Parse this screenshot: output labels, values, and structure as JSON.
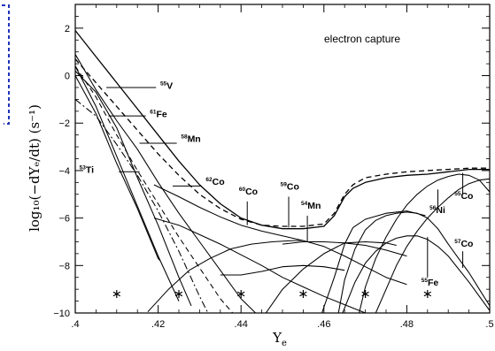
{
  "chart_data": {
    "type": "line",
    "annotation": "electron capture",
    "xlabel": "Y",
    "xlabel_sub": "e",
    "ylabel": "log₁₀(−dYₑ/dt) (s⁻¹)",
    "xlim": [
      0.4,
      0.5
    ],
    "ylim": [
      -10,
      3
    ],
    "x_ticks": [
      {
        "v": 0.4,
        "label": ".4"
      },
      {
        "v": 0.42,
        "label": ".42"
      },
      {
        "v": 0.44,
        "label": ".44"
      },
      {
        "v": 0.46,
        "label": ".46"
      },
      {
        "v": 0.48,
        "label": ".48"
      },
      {
        "v": 0.5,
        "label": ".5"
      }
    ],
    "y_ticks": [
      {
        "v": 2,
        "label": "2"
      },
      {
        "v": 0,
        "label": "0"
      },
      {
        "v": -2,
        "label": "−2"
      },
      {
        "v": -4,
        "label": "−4"
      },
      {
        "v": -6,
        "label": "−6"
      },
      {
        "v": -8,
        "label": "−8"
      },
      {
        "v": -10,
        "label": "−10"
      }
    ],
    "isotope_labels": [
      {
        "mass": "55",
        "symbol": "V",
        "x": 0.4205,
        "y": -0.55,
        "line": [
          [
            0.4075,
            -0.5
          ],
          [
            0.4195,
            -0.5
          ]
        ]
      },
      {
        "mass": "61",
        "symbol": "Fe",
        "x": 0.418,
        "y": -1.75,
        "line": [
          [
            0.408,
            -1.7
          ],
          [
            0.417,
            -1.7
          ]
        ]
      },
      {
        "mass": "58",
        "symbol": "Mn",
        "x": 0.4255,
        "y": -2.8,
        "line": [
          [
            0.4155,
            -2.85
          ],
          [
            0.4245,
            -2.85
          ]
        ]
      },
      {
        "mass": "53",
        "symbol": "Ti",
        "x": 0.401,
        "y": -4.1,
        "line": [
          [
            0.4105,
            -4.05
          ],
          [
            0.4155,
            -4.05
          ]
        ]
      },
      {
        "mass": "62",
        "symbol": "Co",
        "x": 0.4315,
        "y": -4.6,
        "line": [
          [
            0.4235,
            -4.65
          ],
          [
            0.4305,
            -4.65
          ]
        ]
      },
      {
        "mass": "60",
        "symbol": "Co",
        "x": 0.4395,
        "y": -5.0,
        "line": [
          [
            0.4415,
            -5.3
          ],
          [
            0.4415,
            -6.3
          ]
        ]
      },
      {
        "mass": "59",
        "symbol": "Co",
        "x": 0.4495,
        "y": -4.8,
        "line": [
          [
            0.4515,
            -5.1
          ],
          [
            0.4515,
            -6.4
          ]
        ]
      },
      {
        "mass": "54",
        "symbol": "Mn",
        "x": 0.4545,
        "y": -5.6,
        "line": [
          [
            0.456,
            -5.9
          ],
          [
            0.456,
            -7.0
          ]
        ]
      },
      {
        "mass": "56",
        "symbol": "Ni",
        "x": 0.4855,
        "y": -5.8,
        "line": [
          [
            0.4875,
            -5.6
          ],
          [
            0.4875,
            -4.8
          ]
        ]
      },
      {
        "mass": "55",
        "symbol": "Co",
        "x": 0.4915,
        "y": -5.2,
        "line": [
          [
            0.4935,
            -5.0
          ],
          [
            0.4935,
            -4.1
          ]
        ]
      },
      {
        "mass": "57",
        "symbol": "Co",
        "x": 0.4915,
        "y": -7.2,
        "line": [
          [
            0.4935,
            -7.4
          ],
          [
            0.4935,
            -8.1
          ]
        ]
      },
      {
        "mass": "55",
        "symbol": "Fe",
        "x": 0.4835,
        "y": -8.85,
        "line": [
          [
            0.485,
            -8.5
          ],
          [
            0.485,
            -6.8
          ]
        ]
      }
    ],
    "markers": {
      "symbol": "*",
      "y": -9.2,
      "x": [
        0.41,
        0.425,
        0.44,
        0.455,
        0.47,
        0.485
      ]
    },
    "series": [
      {
        "style": "solid",
        "x": [
          0.4,
          0.405,
          0.41,
          0.415,
          0.42,
          0.425,
          0.43,
          0.435,
          0.44,
          0.445,
          0.45,
          0.455,
          0.46,
          0.4625,
          0.465,
          0.467,
          0.47,
          0.475,
          0.48,
          0.485,
          0.49,
          0.495,
          0.5
        ],
        "y": [
          1.9,
          0.8,
          -0.3,
          -1.4,
          -2.5,
          -3.6,
          -4.6,
          -5.4,
          -6.0,
          -6.3,
          -6.45,
          -6.45,
          -6.35,
          -5.9,
          -5.1,
          -4.75,
          -4.5,
          -4.3,
          -4.2,
          -4.15,
          -4.05,
          -3.95,
          -3.95
        ]
      },
      {
        "style": "dashed",
        "x": [
          0.4,
          0.405,
          0.41,
          0.415,
          0.42,
          0.425,
          0.43,
          0.435,
          0.44,
          0.445,
          0.45,
          0.455,
          0.46,
          0.4625,
          0.465,
          0.467,
          0.47,
          0.475,
          0.48,
          0.485,
          0.49,
          0.495,
          0.5
        ],
        "y": [
          0.7,
          -0.3,
          -1.3,
          -2.3,
          -3.3,
          -4.2,
          -5.0,
          -5.6,
          -6.05,
          -6.3,
          -6.35,
          -6.35,
          -6.25,
          -5.8,
          -5.0,
          -4.6,
          -4.3,
          -4.15,
          -4.05,
          -4.0,
          -3.95,
          -3.9,
          -3.9
        ]
      },
      {
        "style": "dashed",
        "x": [
          0.4,
          0.405,
          0.41,
          0.415,
          0.42,
          0.425,
          0.43,
          0.435,
          0.438
        ],
        "y": [
          0.4,
          -0.9,
          -2.5,
          -4.0,
          -5.4,
          -6.8,
          -8.1,
          -9.4,
          -10.0
        ]
      },
      {
        "style": "dashdot",
        "x": [
          0.4,
          0.405,
          0.41,
          0.415,
          0.42,
          0.425,
          0.43,
          0.432
        ],
        "y": [
          -1.0,
          -1.7,
          -2.9,
          -4.2,
          -5.7,
          -7.4,
          -9.3,
          -10.0
        ]
      },
      {
        "style": "solid",
        "x": [
          0.4,
          0.405,
          0.41,
          0.415,
          0.42,
          0.4205
        ],
        "y": [
          0.0,
          -1.6,
          -3.7,
          -5.6,
          -7.7,
          -7.8
        ]
      },
      {
        "style": "solid",
        "x": [
          0.4,
          0.405,
          0.41,
          0.415,
          0.42,
          0.425
        ],
        "y": [
          0.4,
          -1.3,
          -3.4,
          -5.5,
          -7.6,
          -9.5
        ]
      },
      {
        "style": "solid",
        "x": [
          0.4,
          0.405,
          0.41,
          0.415,
          0.42,
          0.425,
          0.428
        ],
        "y": [
          0.2,
          -0.7,
          -2.2,
          -4.3,
          -6.3,
          -8.5,
          -9.7
        ]
      },
      {
        "style": "solid",
        "x": [
          0.4,
          0.405,
          0.41,
          0.415,
          0.42,
          0.425,
          0.43,
          0.435,
          0.44,
          0.4435
        ],
        "y": [
          0.9,
          -0.6,
          -1.9,
          -3.1,
          -4.5,
          -5.8,
          -7.0,
          -8.2,
          -9.4,
          -10.0
        ]
      },
      {
        "style": "solid",
        "x": [
          0.419,
          0.425,
          0.43,
          0.435,
          0.44,
          0.445,
          0.45,
          0.455,
          0.46,
          0.465,
          0.47,
          0.475,
          0.48
        ],
        "y": [
          -4.6,
          -5.1,
          -5.55,
          -5.95,
          -6.3,
          -6.55,
          -6.75,
          -6.95,
          -7.2,
          -7.6,
          -8.05,
          -8.5,
          -8.8
        ]
      },
      {
        "style": "solid",
        "x": [
          0.419,
          0.425,
          0.43,
          0.435,
          0.44,
          0.445,
          0.45,
          0.455,
          0.46,
          0.465,
          0.47
        ],
        "y": [
          -6.0,
          -6.3,
          -6.7,
          -7.1,
          -7.55,
          -8.0,
          -8.5,
          -8.9,
          -9.3,
          -9.65,
          -10.0
        ]
      },
      {
        "style": "solid",
        "x": [
          0.4175,
          0.4225,
          0.4275,
          0.4325,
          0.4375,
          0.4425,
          0.4475,
          0.4525,
          0.455
        ],
        "y": [
          -9.95,
          -9.0,
          -8.2,
          -7.7,
          -7.3,
          -7.1,
          -7.0,
          -6.95,
          -6.95
        ]
      },
      {
        "style": "solid",
        "x": [
          0.435,
          0.44,
          0.445,
          0.45,
          0.455,
          0.46,
          0.465
        ],
        "y": [
          -8.4,
          -8.4,
          -8.25,
          -8.05,
          -8.0,
          -8.05,
          -8.2
        ]
      },
      {
        "style": "solid",
        "x": [
          0.446,
          0.45,
          0.455,
          0.46,
          0.465,
          0.47,
          0.475,
          0.4775
        ],
        "y": [
          -10.0,
          -9.0,
          -8.15,
          -7.5,
          -7.05,
          -7.0,
          -7.05,
          -7.15
        ]
      },
      {
        "style": "solid",
        "x": [
          0.45,
          0.455,
          0.46,
          0.465,
          0.47,
          0.475,
          0.48
        ],
        "y": [
          -7.1,
          -7.0,
          -7.0,
          -7.05,
          -7.15,
          -7.35,
          -7.6
        ]
      },
      {
        "style": "solid",
        "x": [
          0.4595,
          0.4625,
          0.465,
          0.467,
          0.47,
          0.475,
          0.48,
          0.4845
        ],
        "y": [
          -10.0,
          -8.5,
          -7.1,
          -6.4,
          -6.05,
          -5.8,
          -5.7,
          -5.9
        ]
      },
      {
        "style": "solid",
        "x": [
          0.4635,
          0.465,
          0.4675,
          0.47,
          0.4725,
          0.475,
          0.4775,
          0.48,
          0.4825,
          0.485,
          0.4875,
          0.49,
          0.4925,
          0.495,
          0.4975,
          0.5
        ],
        "y": [
          -10.0,
          -8.6,
          -7.3,
          -6.5,
          -6.1,
          -5.9,
          -5.8,
          -5.75,
          -5.8,
          -6.0,
          -6.45,
          -7.1,
          -7.7,
          -8.3,
          -9.0,
          -9.7
        ]
      },
      {
        "style": "solid",
        "x": [
          0.4645,
          0.4675,
          0.47,
          0.4725,
          0.475,
          0.4775,
          0.48,
          0.4825,
          0.485,
          0.4875,
          0.49,
          0.495,
          0.5
        ],
        "y": [
          -10.0,
          -8.7,
          -7.9,
          -7.4,
          -7.05,
          -6.85,
          -6.75,
          -6.75,
          -6.9,
          -7.2,
          -7.6,
          -8.7,
          -9.9
        ]
      },
      {
        "style": "solid",
        "x": [
          0.4685,
          0.47,
          0.4725,
          0.475,
          0.4775,
          0.48,
          0.4825,
          0.485,
          0.4875,
          0.49,
          0.4925,
          0.495,
          0.4975,
          0.5
        ],
        "y": [
          -10.0,
          -8.9,
          -7.7,
          -6.8,
          -6.05,
          -5.45,
          -5.0,
          -4.65,
          -4.4,
          -4.25,
          -4.15,
          -4.2,
          -4.4,
          -4.9
        ]
      },
      {
        "style": "solid",
        "x": [
          0.4725,
          0.475,
          0.4775,
          0.48,
          0.4825,
          0.485,
          0.4875,
          0.49,
          0.4925,
          0.495,
          0.4975,
          0.5
        ],
        "y": [
          -10.0,
          -9.0,
          -8.0,
          -7.2,
          -6.55,
          -6.0,
          -5.55,
          -5.15,
          -4.8,
          -4.55,
          -4.4,
          -4.35
        ]
      }
    ]
  }
}
